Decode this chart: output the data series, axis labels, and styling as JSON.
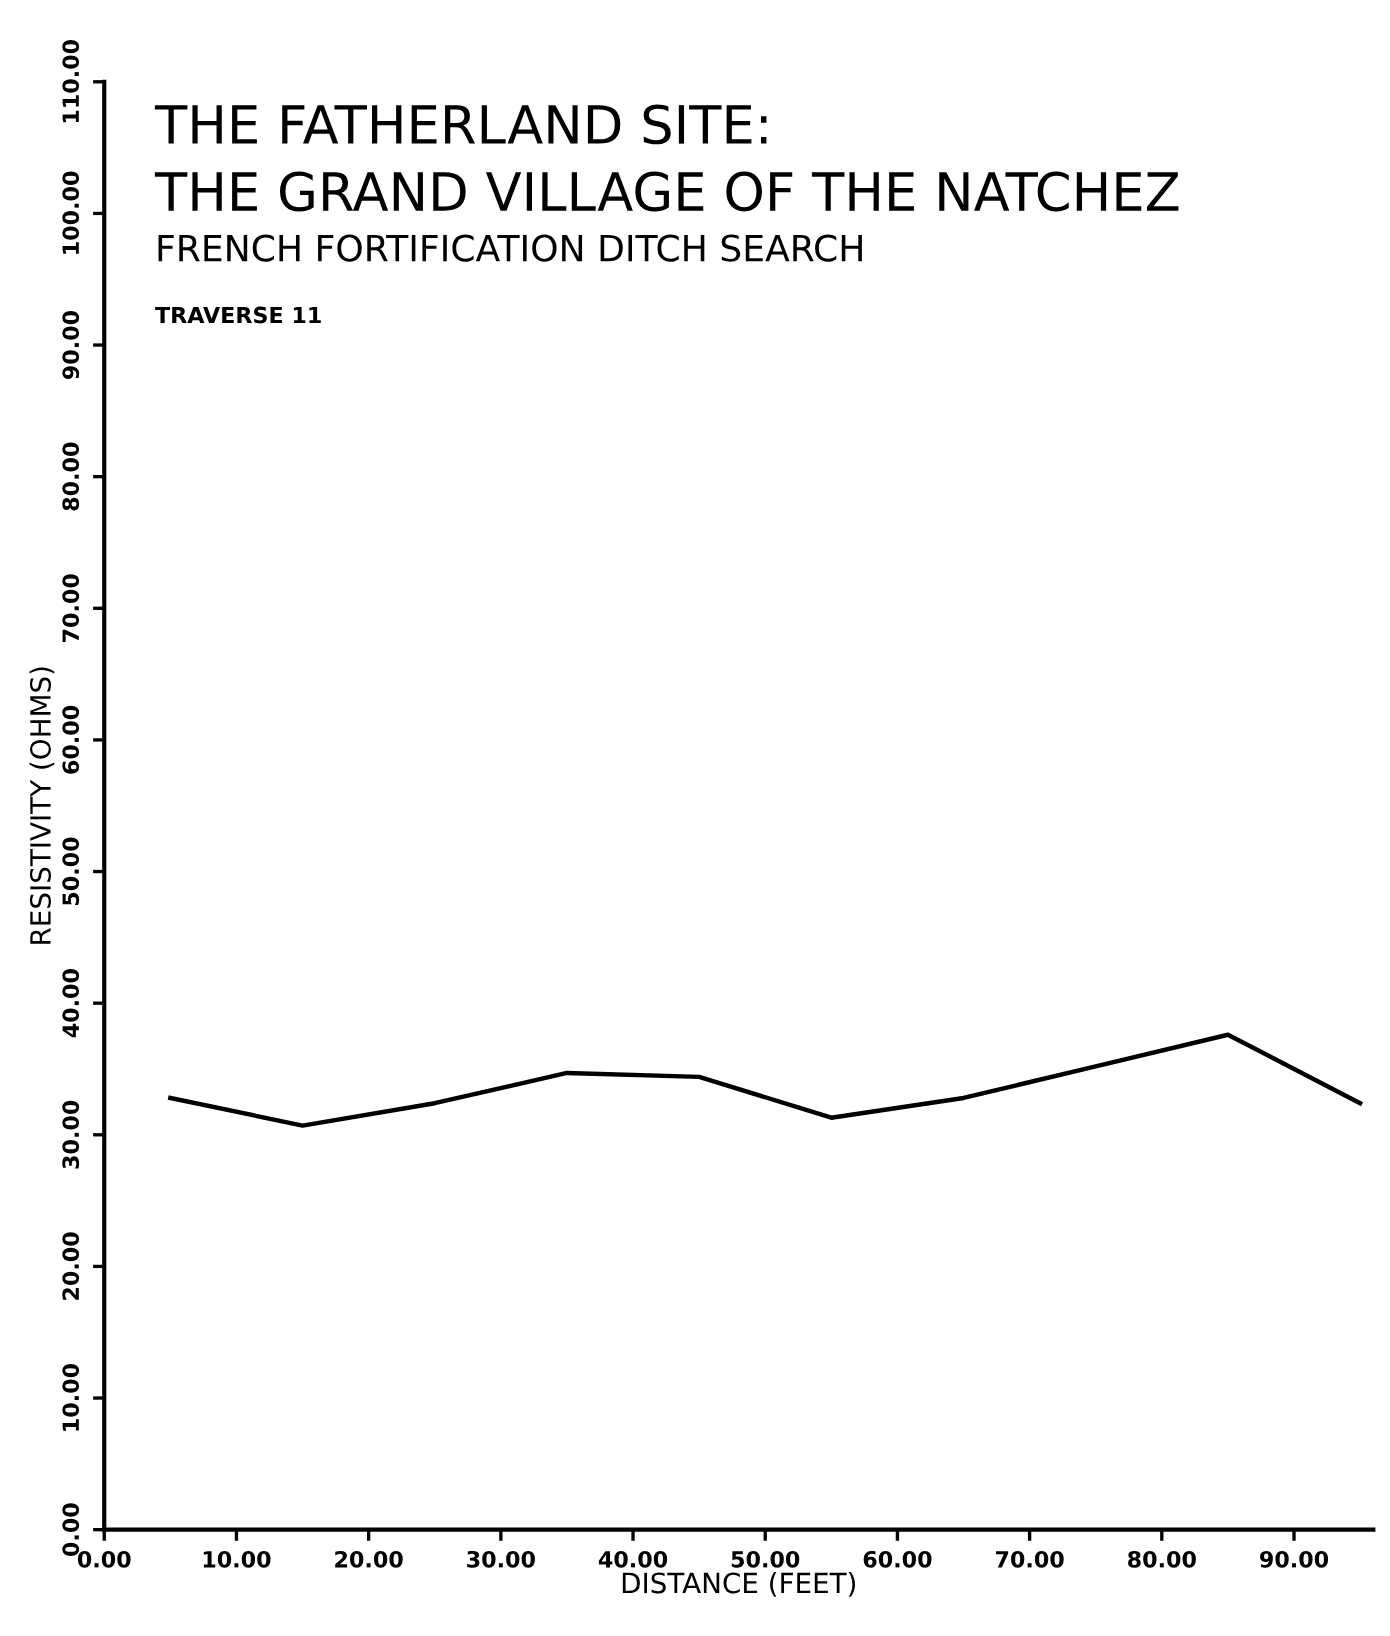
{
  "chart_data": {
    "type": "line",
    "title": "THE FATHERLAND SITE:\nTHE GRAND VILLAGE OF THE NATCHEZ",
    "subtitle": "FRENCH FORTIFICATION DITCH SEARCH",
    "annotations": [
      "TRAVERSE 11"
    ],
    "xlabel": "DISTANCE (FEET)",
    "ylabel": "RESISTIVITY (OHMS)",
    "x": [
      5,
      15,
      25,
      35,
      45,
      55,
      65,
      75,
      85,
      95
    ],
    "series": [
      {
        "color": "#000000",
        "values": [
          32.8,
          30.7,
          32.4,
          34.7,
          34.4,
          31.3,
          32.8,
          35.2,
          37.6,
          32.4
        ]
      }
    ],
    "xlim": [
      0,
      96
    ],
    "xticks": [
      {
        "value": 0,
        "label": "0.00"
      },
      {
        "value": 10,
        "label": "10.00"
      },
      {
        "value": 20,
        "label": "20.00"
      },
      {
        "value": 30,
        "label": "30.00"
      },
      {
        "value": 40,
        "label": "40.00"
      },
      {
        "value": 50,
        "label": "50.00"
      },
      {
        "value": 60,
        "label": "60.00"
      },
      {
        "value": 70,
        "label": "70.00"
      },
      {
        "value": 80,
        "label": "80.00"
      },
      {
        "value": 90,
        "label": "90.00"
      }
    ],
    "ylim": [
      0,
      110
    ],
    "yticks": [
      {
        "value": 0,
        "label": "0.00"
      },
      {
        "value": 10,
        "label": "10.00"
      },
      {
        "value": 20,
        "label": "20.00"
      },
      {
        "value": 30,
        "label": "30.00"
      },
      {
        "value": 40,
        "label": "40.00"
      },
      {
        "value": 50,
        "label": "50.00"
      },
      {
        "value": 60,
        "label": "60.00"
      },
      {
        "value": 70,
        "label": "70.00"
      },
      {
        "value": 80,
        "label": "80.00"
      },
      {
        "value": 90,
        "label": "90.00"
      },
      {
        "value": 100,
        "label": "100.00"
      },
      {
        "value": 110,
        "label": "110.00"
      }
    ],
    "grid": false,
    "legend": false,
    "marker": "none",
    "line_style": "solid"
  }
}
